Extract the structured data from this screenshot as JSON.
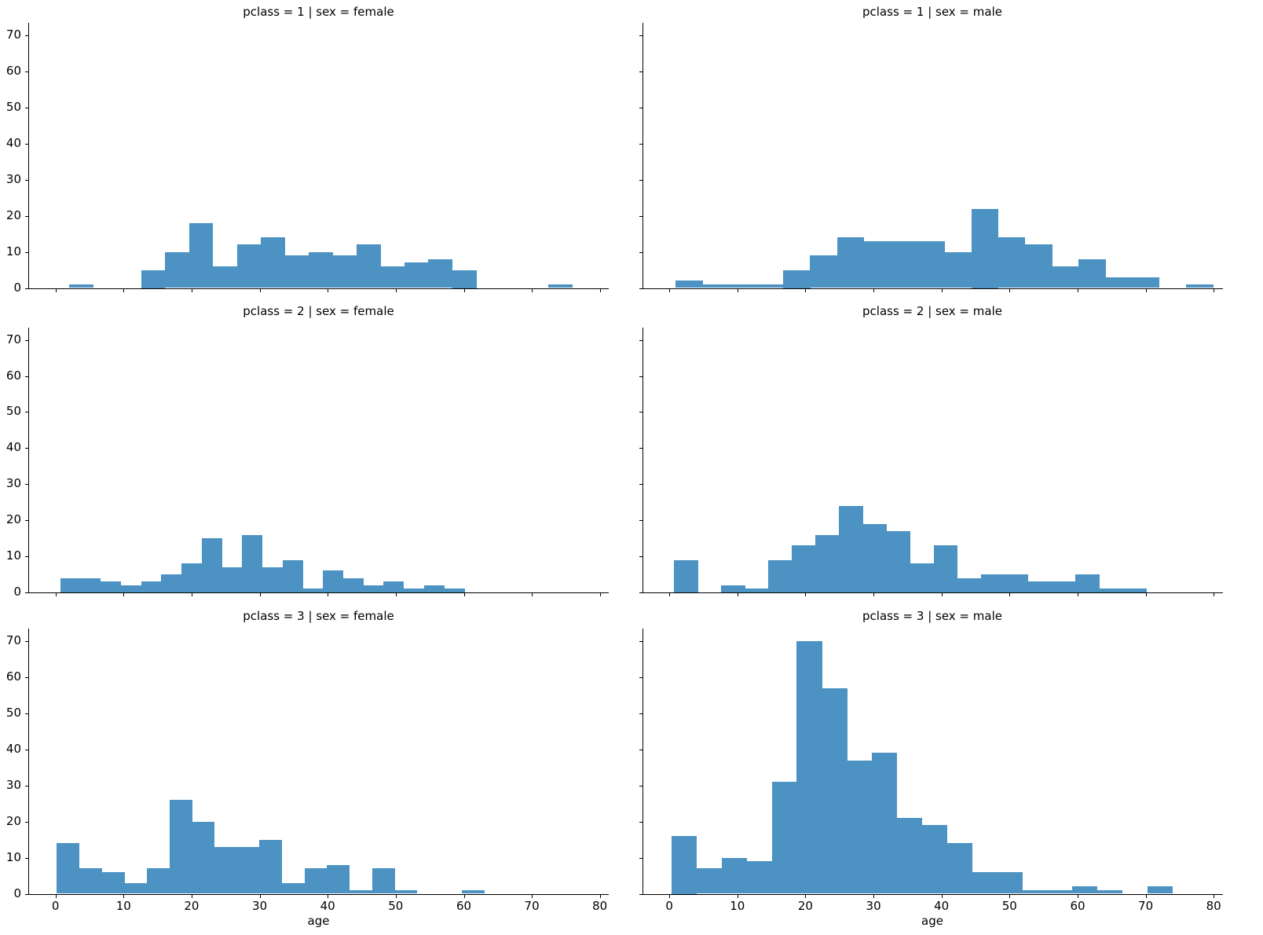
{
  "figure": {
    "background_color": "#ffffff",
    "bar_color": "#4C92C3",
    "axis_color": "#000000",
    "text_color": "#000000"
  },
  "axes": {
    "xlabel": "age",
    "xticks": [
      0,
      10,
      20,
      30,
      40,
      50,
      60,
      70,
      80
    ],
    "yticks": [
      0,
      10,
      20,
      30,
      40,
      50,
      60,
      70
    ],
    "xlim": [
      -4.0,
      81.3
    ],
    "ylim": [
      0,
      73.5
    ],
    "grid": false,
    "legend": false
  },
  "chart_data": [
    {
      "type": "bar",
      "subtype": "histogram",
      "title": "pclass = 1 | sex = female",
      "row_var": "pclass",
      "row_val": "1",
      "col_var": "sex",
      "col_val": "female",
      "row": 0,
      "col": 0,
      "x_variable": "age",
      "bin_start": 2.0,
      "bin_width": 3.52,
      "counts": [
        1,
        0,
        0,
        5,
        10,
        18,
        6,
        12,
        14,
        9,
        10,
        9,
        12,
        6,
        7,
        8,
        5,
        0,
        0,
        0,
        1
      ]
    },
    {
      "type": "bar",
      "subtype": "histogram",
      "title": "pclass = 1 | sex = male",
      "row_var": "pclass",
      "row_val": "1",
      "col_var": "sex",
      "col_val": "male",
      "row": 0,
      "col": 1,
      "x_variable": "age",
      "bin_start": 0.92,
      "bin_width": 3.95,
      "counts": [
        2,
        1,
        1,
        1,
        5,
        9,
        14,
        13,
        13,
        13,
        10,
        22,
        14,
        12,
        6,
        8,
        3,
        3,
        0,
        1
      ]
    },
    {
      "type": "bar",
      "subtype": "histogram",
      "title": "pclass = 2 | sex = female",
      "row_var": "pclass",
      "row_val": "2",
      "col_var": "sex",
      "col_val": "female",
      "row": 1,
      "col": 0,
      "x_variable": "age",
      "bin_start": 0.7,
      "bin_width": 2.97,
      "counts": [
        4,
        4,
        3,
        2,
        3,
        5,
        8,
        15,
        7,
        16,
        7,
        9,
        1,
        6,
        4,
        2,
        3,
        1,
        2,
        1
      ]
    },
    {
      "type": "bar",
      "subtype": "histogram",
      "title": "pclass = 2 | sex = male",
      "row_var": "pclass",
      "row_val": "2",
      "col_var": "sex",
      "col_val": "male",
      "row": 1,
      "col": 1,
      "x_variable": "age",
      "bin_start": 0.67,
      "bin_width": 3.47,
      "counts": [
        9,
        0,
        2,
        1,
        9,
        13,
        16,
        24,
        19,
        17,
        8,
        13,
        4,
        5,
        5,
        3,
        3,
        5,
        1,
        1
      ]
    },
    {
      "type": "bar",
      "subtype": "histogram",
      "title": "pclass = 3 | sex = female",
      "row_var": "pclass",
      "row_val": "3",
      "col_var": "sex",
      "col_val": "female",
      "row": 2,
      "col": 0,
      "x_variable": "age",
      "bin_start": 0.17,
      "bin_width": 3.31,
      "counts": [
        14,
        7,
        6,
        3,
        7,
        26,
        20,
        13,
        13,
        15,
        3,
        7,
        8,
        1,
        7,
        1,
        0,
        0,
        1
      ]
    },
    {
      "type": "bar",
      "subtype": "histogram",
      "title": "pclass = 3 | sex = male",
      "row_var": "pclass",
      "row_val": "3",
      "col_var": "sex",
      "col_val": "male",
      "row": 2,
      "col": 1,
      "x_variable": "age",
      "bin_start": 0.33,
      "bin_width": 3.68,
      "counts": [
        16,
        7,
        10,
        9,
        31,
        70,
        57,
        37,
        39,
        21,
        19,
        14,
        6,
        6,
        1,
        1,
        2,
        1,
        0,
        2
      ]
    }
  ]
}
